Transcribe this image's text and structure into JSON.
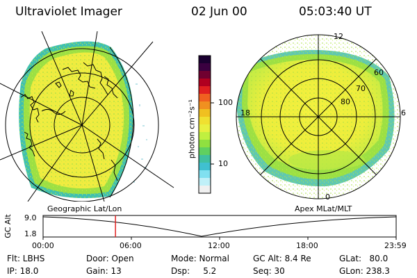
{
  "header": {
    "title": "Ultraviolet Imager",
    "date": "02 Jun 00",
    "time": "05:03:40 UT"
  },
  "colorbar": {
    "unit_label": "photon cm⁻²s⁻¹",
    "tick_100": "100",
    "tick_10": "10",
    "colors": [
      "#1a0030",
      "#3a0040",
      "#700030",
      "#b00020",
      "#e02020",
      "#f06020",
      "#f09020",
      "#f0c020",
      "#f0e030",
      "#e8f040",
      "#c0f040",
      "#90e040",
      "#60d060",
      "#40c0a0",
      "#40c0d0",
      "#80e0f0",
      "#c0f0f8",
      "#f0f0f0"
    ]
  },
  "geo_panel": {
    "label": "Geographic Lat/Lon"
  },
  "apex_panel": {
    "label": "Apex MLat/MLT",
    "mlt_12": "12",
    "mlt_18": "18",
    "mlt_6": "6",
    "mlt_0": "0",
    "lat_60": "60",
    "lat_70": "70",
    "lat_80": "80"
  },
  "altitude_plot": {
    "axis_label": "GC Alt",
    "y_max": "9.0",
    "y_min": "1.8",
    "x_ticks": [
      "00:00",
      "06:00",
      "12:00",
      "18:00",
      "23:59"
    ],
    "marker_fraction": 0.205,
    "marker_color": "#e02020"
  },
  "info": {
    "flt": "Flt: LBHS",
    "ip": "IP: 18.0",
    "door": "Door: Open",
    "gain": "Gain: 13",
    "mode": "Mode: Normal",
    "dsp": "Dsp:     5.2",
    "gcalt": "GC Alt: 8.4 Re",
    "seq": "Seq: 30",
    "glat": "GLat:   80.0",
    "glon": "GLon: 238.3"
  },
  "colors": {
    "aurora_yellow": "#f0ec40",
    "aurora_green": "#90e040",
    "aurora_cyan": "#40c0c0"
  }
}
